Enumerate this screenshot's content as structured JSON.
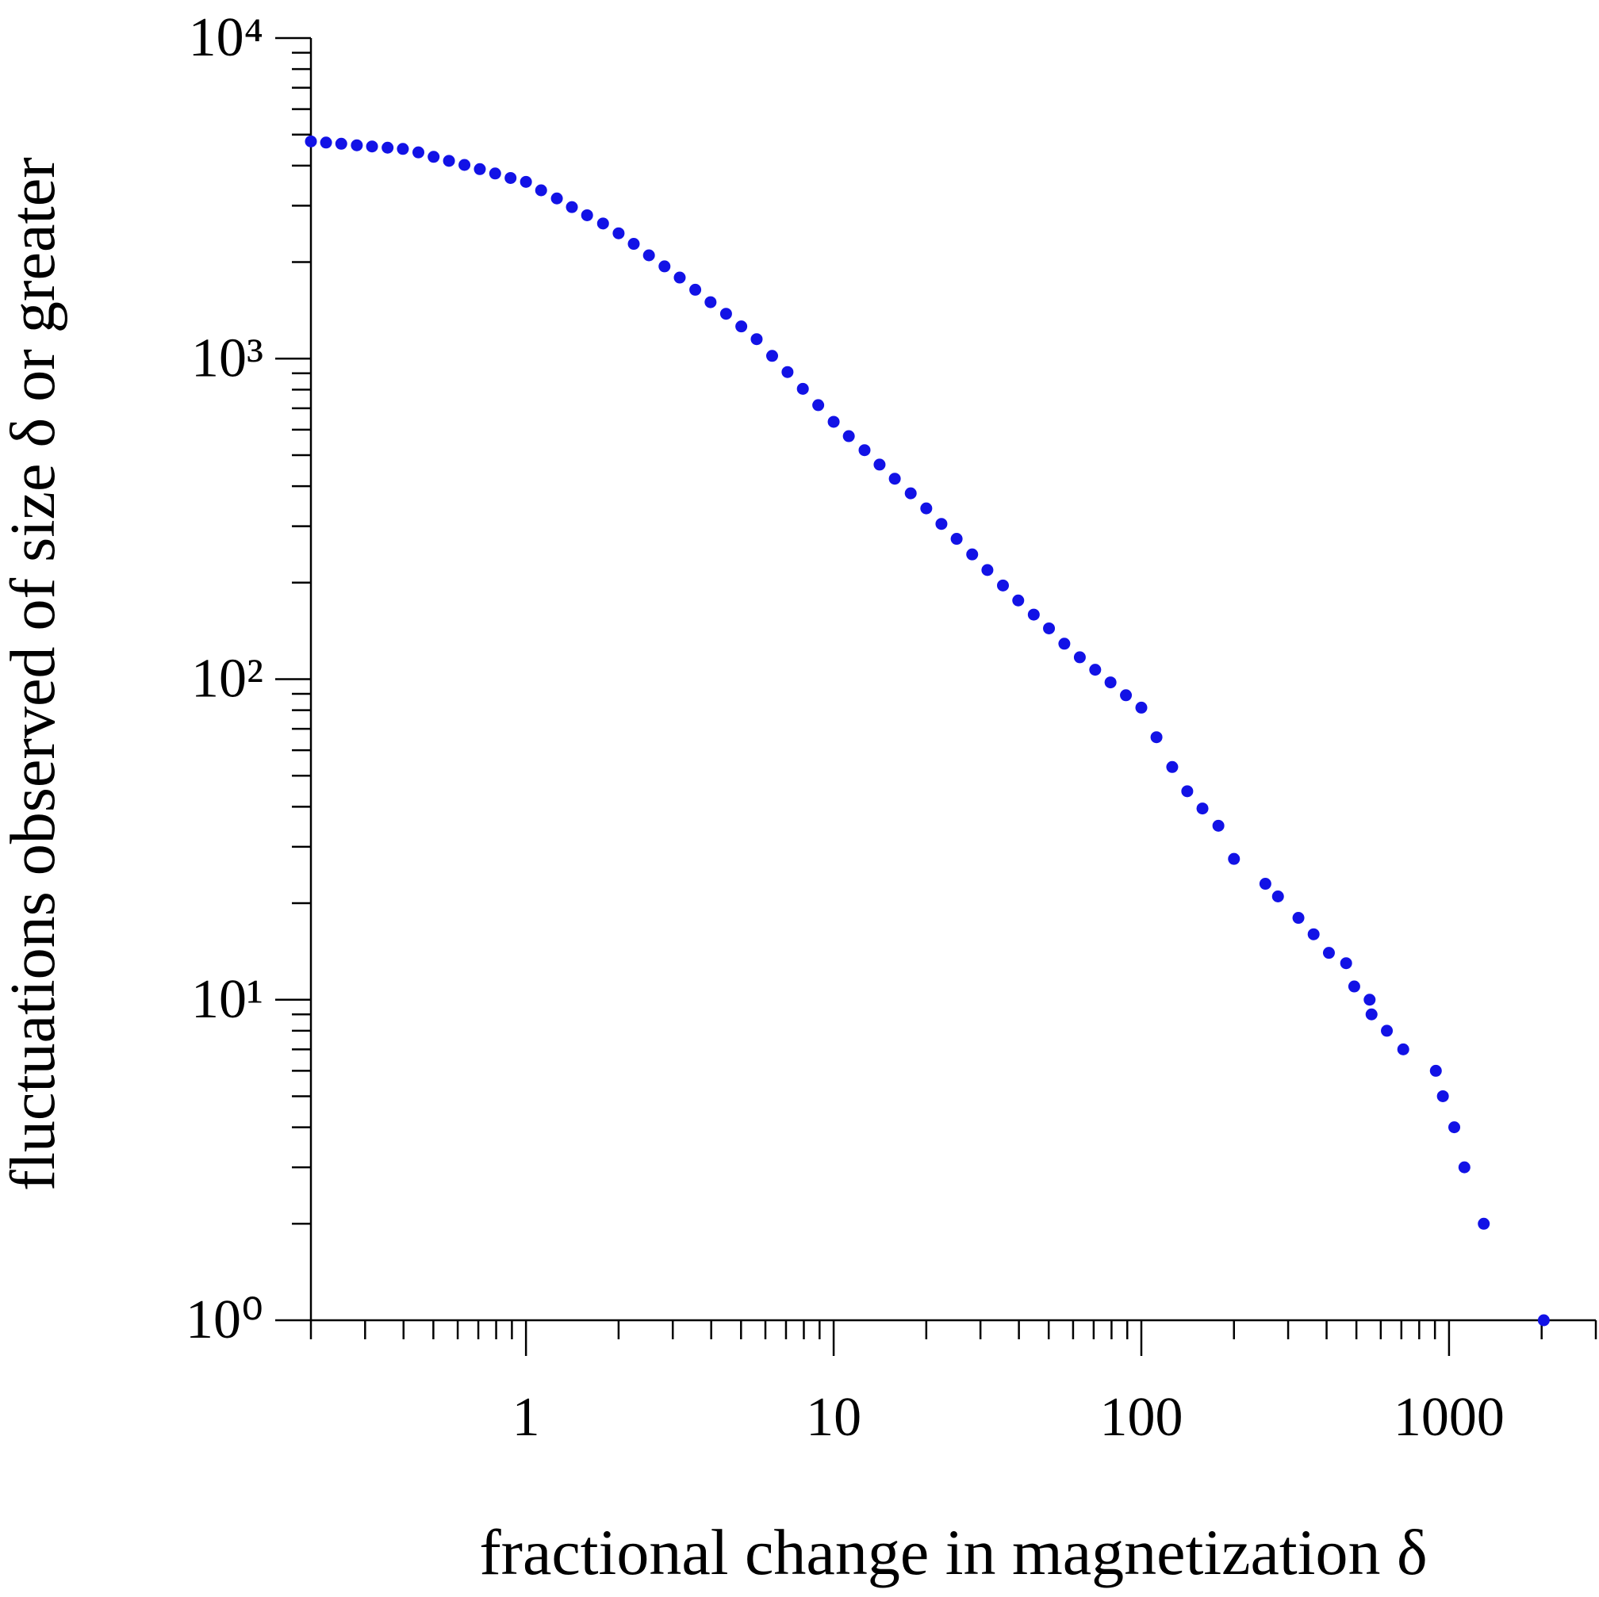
{
  "chart_data": {
    "type": "scatter",
    "x_label": "fractional change in magnetization  δ",
    "y_label": "fluctuations observed of size δ or greater",
    "xscale": "log",
    "yscale": "log",
    "xlim": [
      0.2,
      3000
    ],
    "ylim": [
      1,
      10000
    ],
    "xticks": [
      1,
      10,
      100,
      1000
    ],
    "yticks": [
      {
        "value": 1,
        "label": "10⁰"
      },
      {
        "value": 10,
        "label": "10¹"
      },
      {
        "value": 100,
        "label": "10²"
      },
      {
        "value": 1000,
        "label": "10³"
      },
      {
        "value": 10000,
        "label": "10⁴"
      }
    ],
    "xminorticks": [
      0.2,
      0.3,
      0.4,
      0.5,
      0.6,
      0.7,
      0.8,
      0.9,
      2,
      3,
      4,
      5,
      6,
      7,
      8,
      9,
      20,
      30,
      40,
      50,
      60,
      70,
      80,
      90,
      200,
      300,
      400,
      500,
      600,
      700,
      800,
      900,
      2000,
      3000
    ],
    "yminorticks": [
      2,
      3,
      4,
      5,
      6,
      7,
      8,
      9,
      20,
      30,
      40,
      50,
      60,
      70,
      80,
      90,
      200,
      300,
      400,
      500,
      600,
      700,
      800,
      900,
      2000,
      3000,
      4000,
      5000,
      6000,
      7000,
      8000,
      9000
    ],
    "series": [
      {
        "color": "#1212e6",
        "x": [
          0.2,
          0.224,
          0.251,
          0.282,
          0.316,
          0.355,
          0.398,
          0.447,
          0.501,
          0.562,
          0.631,
          0.708,
          0.794,
          0.891,
          1,
          1.12,
          1.26,
          1.41,
          1.58,
          1.78,
          2.0,
          2.24,
          2.51,
          2.82,
          3.16,
          3.55,
          3.98,
          4.47,
          5.01,
          5.62,
          6.31,
          7.08,
          7.94,
          8.91,
          10,
          11.2,
          12.6,
          14.1,
          15.8,
          17.8,
          20.0,
          22.4,
          25.1,
          28.2,
          31.6,
          35.5,
          39.8,
          44.7,
          50.1,
          56.2,
          63.1,
          70.8,
          79.4,
          89.1,
          100,
          112,
          126,
          141,
          158,
          178,
          200,
          253,
          278,
          324,
          363,
          407,
          463,
          492,
          552,
          560,
          628,
          710,
          906,
          955,
          1040,
          1122,
          1297,
          2032
        ],
        "values": [
          4760,
          4720,
          4680,
          4630,
          4590,
          4550,
          4510,
          4400,
          4260,
          4140,
          4020,
          3900,
          3780,
          3660,
          3560,
          3350,
          3160,
          2970,
          2800,
          2640,
          2460,
          2280,
          2100,
          1940,
          1790,
          1640,
          1500,
          1380,
          1260,
          1150,
          1020,
          908,
          805,
          716,
          635,
          573,
          518,
          467,
          422,
          380,
          341,
          305,
          274,
          245,
          219,
          196,
          176,
          159,
          144,
          129,
          117,
          107,
          97.7,
          89.1,
          81.5,
          65.9,
          53.2,
          44.7,
          39.5,
          34.9,
          27.5,
          23,
          21,
          18,
          16,
          14,
          13,
          11,
          10,
          9,
          8,
          7,
          6,
          5,
          4,
          3,
          2,
          1
        ]
      }
    ]
  }
}
